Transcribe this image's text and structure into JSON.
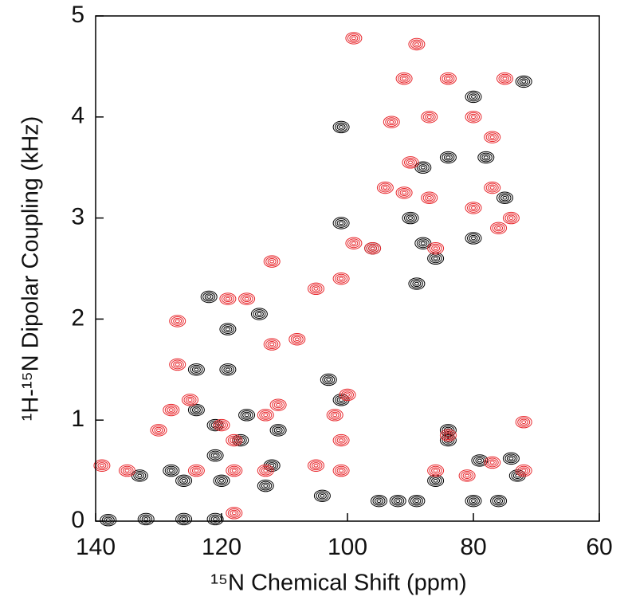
{
  "chart_data": {
    "type": "contour",
    "x_label": "¹⁵N Chemical Shift (ppm)",
    "y_label": "¹H-¹⁵N Dipolar Coupling (kHz)",
    "xlim": [
      140,
      60
    ],
    "xticks": [
      140,
      120,
      100,
      80,
      60
    ],
    "ylim": [
      0,
      5
    ],
    "yticks": [
      0,
      1,
      2,
      3,
      4,
      5
    ],
    "series": [
      {
        "color": "#000000",
        "x": [
          72,
          80,
          88,
          78,
          84,
          90,
          88,
          86,
          80,
          75,
          96,
          101,
          101,
          89,
          122,
          114,
          119,
          124,
          119,
          103,
          101,
          84,
          84,
          86,
          76,
          80,
          89,
          92,
          95,
          104,
          111,
          117,
          121,
          126,
          120,
          113,
          133,
          128,
          121,
          116,
          124,
          132,
          126,
          121,
          138,
          73,
          79,
          74,
          112
        ],
        "y": [
          4.35,
          4.2,
          3.5,
          3.6,
          3.6,
          3.0,
          2.75,
          2.6,
          2.8,
          3.2,
          2.7,
          2.95,
          3.9,
          2.35,
          2.22,
          2.05,
          1.9,
          1.5,
          1.5,
          1.4,
          1.2,
          0.9,
          0.8,
          0.4,
          0.2,
          0.2,
          0.2,
          0.2,
          0.2,
          0.25,
          0.9,
          0.8,
          0.65,
          0.4,
          0.4,
          0.35,
          0.45,
          0.5,
          0.95,
          1.05,
          1.1,
          0.02,
          0.02,
          0.02,
          0.01,
          0.45,
          0.6,
          0.62,
          0.55
        ]
      },
      {
        "color": "#e8262b",
        "x": [
          99,
          89,
          91,
          84,
          75,
          93,
          87,
          80,
          77,
          90,
          94,
          91,
          87,
          80,
          77,
          74,
          76,
          86,
          99,
          96,
          101,
          105,
          112,
          116,
          119,
          127,
          112,
          108,
          127,
          100,
          102,
          101,
          105,
          101,
          84,
          86,
          81,
          72,
          72,
          77,
          118,
          139,
          130,
          128,
          125,
          120,
          118,
          124,
          118,
          113,
          135,
          113,
          111
        ],
        "y": [
          4.78,
          4.72,
          4.38,
          4.38,
          4.38,
          3.95,
          4.0,
          4.0,
          3.8,
          3.55,
          3.3,
          3.25,
          3.2,
          3.1,
          3.3,
          3.0,
          2.9,
          2.7,
          2.75,
          2.7,
          2.4,
          2.3,
          2.57,
          2.2,
          2.2,
          1.98,
          1.75,
          1.8,
          1.55,
          1.25,
          1.05,
          0.8,
          0.55,
          0.5,
          0.85,
          0.5,
          0.45,
          0.5,
          0.98,
          0.58,
          0.08,
          0.55,
          0.9,
          1.1,
          1.2,
          0.95,
          0.8,
          0.5,
          0.5,
          0.5,
          0.5,
          1.05,
          1.15
        ]
      }
    ]
  }
}
